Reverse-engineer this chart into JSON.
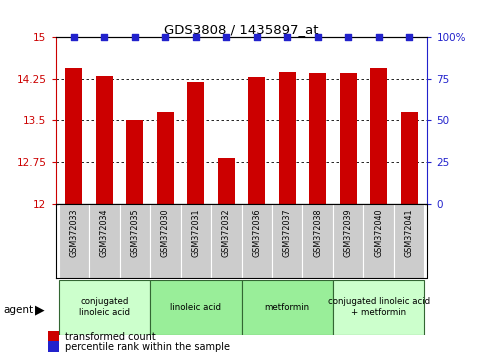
{
  "title": "GDS3808 / 1435897_at",
  "samples": [
    "GSM372033",
    "GSM372034",
    "GSM372035",
    "GSM372030",
    "GSM372031",
    "GSM372032",
    "GSM372036",
    "GSM372037",
    "GSM372038",
    "GSM372039",
    "GSM372040",
    "GSM372041"
  ],
  "bar_values": [
    14.45,
    14.3,
    13.5,
    13.65,
    14.2,
    12.82,
    14.28,
    14.38,
    14.36,
    14.36,
    14.44,
    13.65
  ],
  "percentile_values": [
    100,
    100,
    100,
    100,
    100,
    100,
    100,
    100,
    100,
    100,
    100,
    100
  ],
  "bar_color": "#cc0000",
  "dot_color": "#2222cc",
  "ylim_left": [
    12,
    15
  ],
  "ylim_right": [
    0,
    100
  ],
  "yticks_left": [
    12,
    12.75,
    13.5,
    14.25,
    15
  ],
  "yticks_right": [
    0,
    25,
    50,
    75,
    100
  ],
  "ytick_labels_left": [
    "12",
    "12.75",
    "13.5",
    "14.25",
    "15"
  ],
  "ytick_labels_right": [
    "0",
    "25",
    "50",
    "75",
    "100%"
  ],
  "groups": [
    {
      "label": "conjugated\nlinoleic acid",
      "start": 0,
      "end": 3,
      "color": "#ccffcc"
    },
    {
      "label": "linoleic acid",
      "start": 3,
      "end": 6,
      "color": "#99ee99"
    },
    {
      "label": "metformin",
      "start": 6,
      "end": 9,
      "color": "#99ee99"
    },
    {
      "label": "conjugated linoleic acid\n+ metformin",
      "start": 9,
      "end": 12,
      "color": "#ccffcc"
    }
  ],
  "agent_label": "agent",
  "legend_items": [
    {
      "color": "#cc0000",
      "label": "transformed count"
    },
    {
      "color": "#2222cc",
      "label": "percentile rank within the sample"
    }
  ],
  "sample_box_color": "#cccccc",
  "group_border_color": "#336633"
}
